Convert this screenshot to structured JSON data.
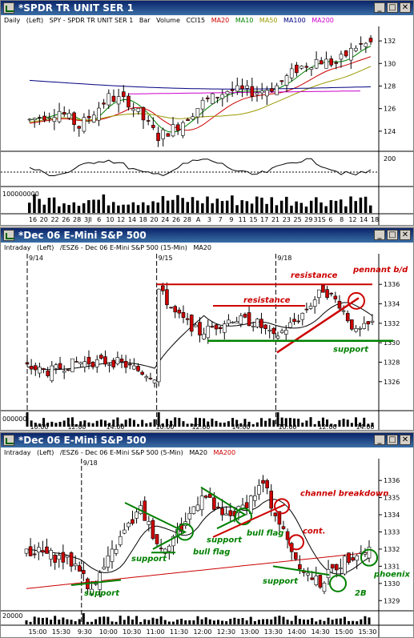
{
  "win1": {
    "title": "*SPDR TR UNIT SER 1",
    "info": [
      "Daily",
      "(Left)",
      "SPY - SPDR TR UNIT SER 1",
      "Bar",
      "Volume",
      "CCI15"
    ],
    "ma": [
      {
        "label": "MA20",
        "color": "#cc0000"
      },
      {
        "label": "MA10",
        "color": "#008000"
      },
      {
        "label": "MA50",
        "color": "#999900"
      },
      {
        "label": "MA100",
        "color": "#000080"
      },
      {
        "label": "MA200",
        "color": "#cc00cc"
      }
    ],
    "yticks": [
      "132",
      "130",
      "128",
      "126",
      "124"
    ],
    "cci_tick": "200",
    "vol_tick": "100000000",
    "xticks": [
      "16",
      "20",
      "22",
      "26",
      "28",
      "3Jl",
      "6",
      "10",
      "12",
      "14",
      "18",
      "20",
      "24",
      "26",
      "28",
      "A",
      "3",
      "7",
      "9",
      "11",
      "15",
      "17",
      "21",
      "23",
      "25",
      "29",
      "31S",
      "6",
      "8",
      "12",
      "14",
      "18"
    ]
  },
  "win2": {
    "title": "*Dec 06  E-Mini S&P 500",
    "info": [
      "Intraday",
      "(Left)",
      "/ESZ6 - Dec 06  E-Mini S&P 500 (15-Min)"
    ],
    "ma": [
      {
        "label": "MA20",
        "color": "#000000"
      }
    ],
    "dates": [
      "9/14",
      "9/15",
      "9/18"
    ],
    "yticks": [
      "1336",
      "1334",
      "1332",
      "1330",
      "1328",
      "1326"
    ],
    "vol_tick": "000000",
    "xticks": [
      "10:00",
      "12:00",
      "14:00",
      "10:00",
      "12:00",
      "14:00",
      "10:00",
      "12:00",
      "14:00"
    ],
    "annotations": {
      "resistance1": "resistance",
      "resistance2": "resistance",
      "pennant": "pennant b/d",
      "support": "support"
    }
  },
  "win3": {
    "title": "*Dec 06  E-Mini S&P 500",
    "info": [
      "Intraday",
      "(Left)",
      "/ESZ6 - Dec 06  E-Mini S&P 500 (5-Min)"
    ],
    "ma": [
      {
        "label": "MA20",
        "color": "#000000"
      },
      {
        "label": "MA200",
        "color": "#cc0000"
      }
    ],
    "date": "9/18",
    "yticks": [
      "1336",
      "1335",
      "1334",
      "1333",
      "1332",
      "1331",
      "1330",
      "1329"
    ],
    "vol_tick": "20000",
    "xticks": [
      "15:00",
      "15:30",
      "9:30",
      "10:00",
      "10:30",
      "11:00",
      "11:30",
      "12:00",
      "12:30",
      "13:00",
      "13:30",
      "14:00",
      "14:30",
      "15:00",
      "15:30"
    ],
    "annotations": {
      "support1": "support",
      "support2": "support",
      "support3": "support",
      "bullflag1": "bull flag",
      "bullflag2": "bull flag",
      "support4": "support",
      "channel": "channel breakdown",
      "cont": "cont.",
      "twoB": "2B",
      "phoenix": "phoenix"
    }
  },
  "colors": {
    "up": "#ffffff",
    "down": "#cc0000",
    "outline": "#000000",
    "green": "#008000",
    "red": "#cc0000"
  }
}
